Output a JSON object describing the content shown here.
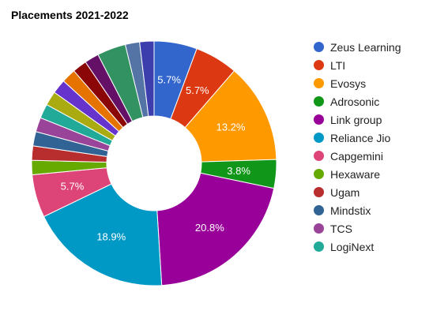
{
  "chart_data": {
    "type": "pie",
    "variant": "donut",
    "title": "Placements 2021-2022",
    "legend_position": "right",
    "slices": [
      {
        "name": "Zeus Learning",
        "value": 5.7,
        "color": "#3366cc",
        "label": "5.7%"
      },
      {
        "name": "LTI",
        "value": 5.7,
        "color": "#dc3912",
        "label": "5.7%"
      },
      {
        "name": "Evosys",
        "value": 13.2,
        "color": "#ff9900",
        "label": "13.2%"
      },
      {
        "name": "Adrosonic",
        "value": 3.8,
        "color": "#109618",
        "label": "3.8%"
      },
      {
        "name": "Link group",
        "value": 20.8,
        "color": "#990099",
        "label": "20.8%"
      },
      {
        "name": "Reliance Jio",
        "value": 18.9,
        "color": "#0099c6",
        "label": "18.9%"
      },
      {
        "name": "Capgemini",
        "value": 5.7,
        "color": "#dd4477",
        "label": "5.7%"
      },
      {
        "name": "Hexaware",
        "value": 1.9,
        "color": "#66aa00",
        "label": ""
      },
      {
        "name": "Ugam",
        "value": 1.9,
        "color": "#b82e2e",
        "label": ""
      },
      {
        "name": "Mindstix",
        "value": 1.9,
        "color": "#316395",
        "label": ""
      },
      {
        "name": "TCS",
        "value": 1.9,
        "color": "#994499",
        "label": ""
      },
      {
        "name": "LogiNext",
        "value": 1.9,
        "color": "#22aa99",
        "label": ""
      },
      {
        "name": "",
        "value": 1.9,
        "color": "#aaaa11",
        "label": ""
      },
      {
        "name": "",
        "value": 1.9,
        "color": "#6633cc",
        "label": ""
      },
      {
        "name": "",
        "value": 1.9,
        "color": "#e67300",
        "label": ""
      },
      {
        "name": "",
        "value": 1.9,
        "color": "#8b0707",
        "label": ""
      },
      {
        "name": "",
        "value": 1.9,
        "color": "#651067",
        "label": ""
      },
      {
        "name": "",
        "value": 3.8,
        "color": "#329262",
        "label": ""
      },
      {
        "name": "",
        "value": 1.9,
        "color": "#5574a6",
        "label": ""
      },
      {
        "name": "",
        "value": 1.9,
        "color": "#3b3eac",
        "label": ""
      }
    ]
  }
}
